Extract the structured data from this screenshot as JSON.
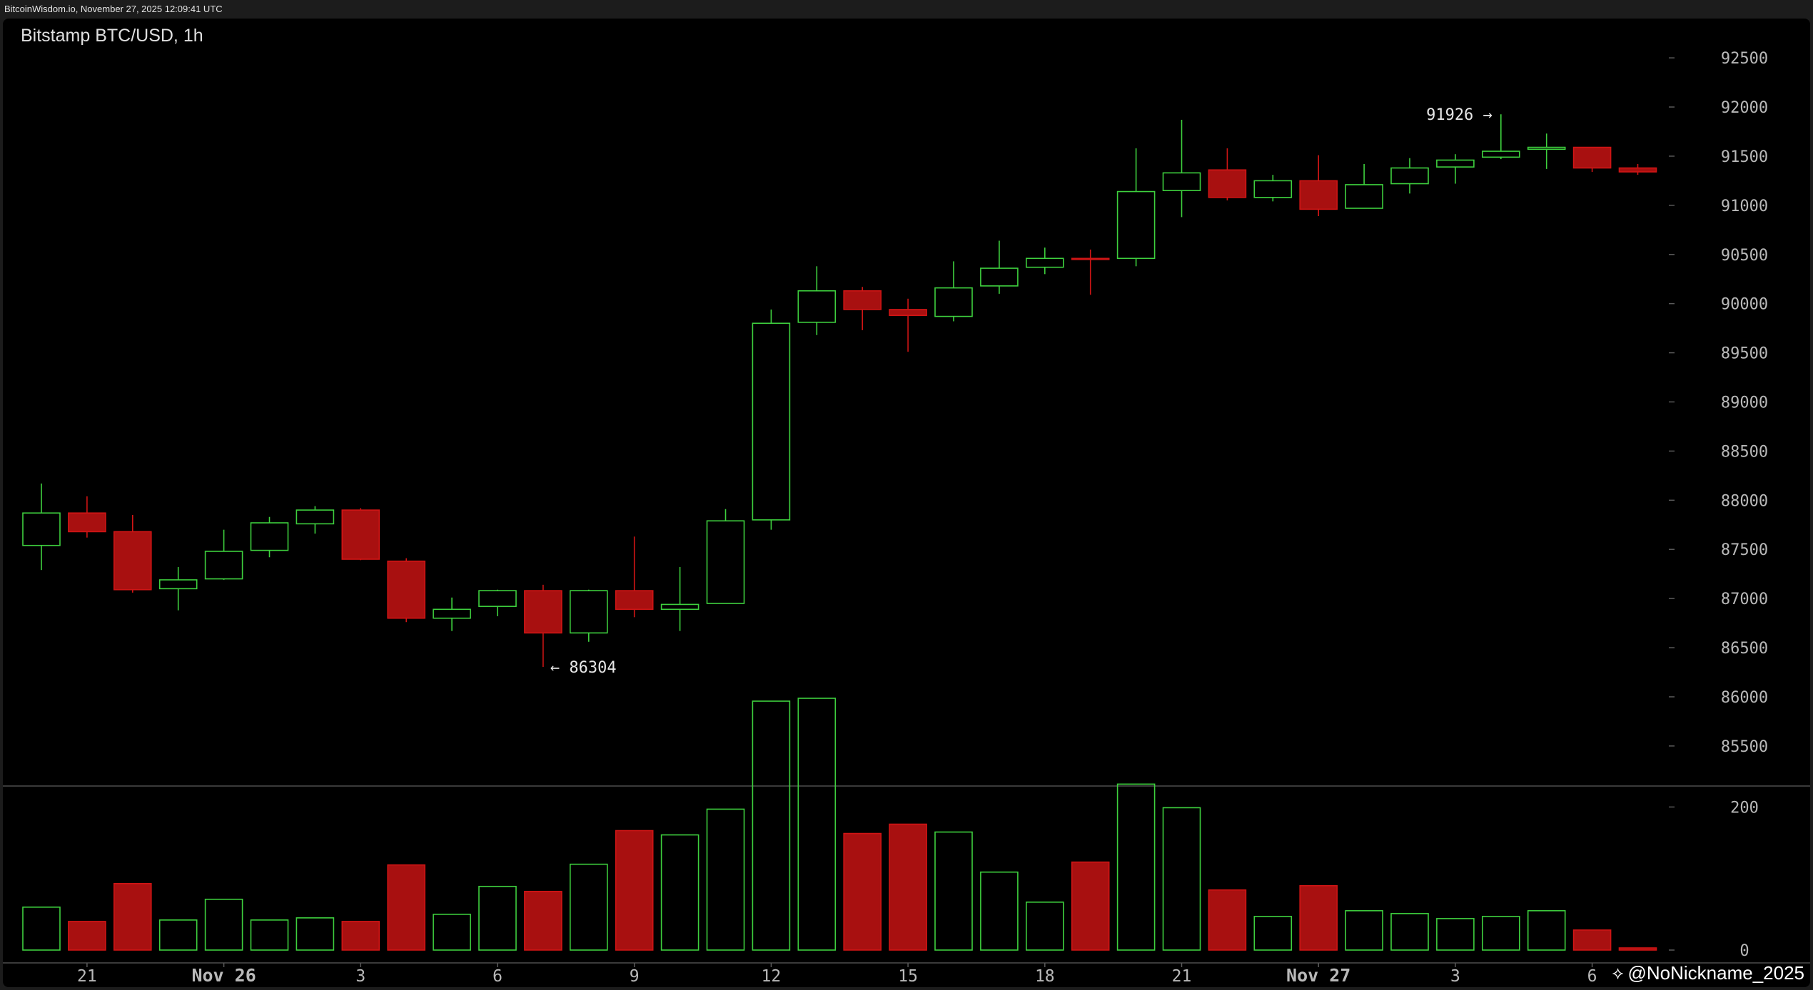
{
  "header": {
    "source_text": "BitcoinWisdom.io, November 27, 2025 12:09:41 UTC"
  },
  "watermark": {
    "text": "@NoNickname_2025",
    "icon": "binance-diamond-icon"
  },
  "colors": {
    "up": "#3ed03e",
    "down": "#a81010",
    "down_edge": "#d01515",
    "background": "#000000",
    "separator": "#3a3a3a",
    "tick_text": "#b9b9b9"
  },
  "chart_data": {
    "type": "candlestick",
    "title": "Bitstamp BTC/USD, 1h",
    "ylim": [
      85100,
      92900
    ],
    "volume_ylim": [
      0,
      355
    ],
    "y_ticks": [
      "85500",
      "86000",
      "86500",
      "87000",
      "87500",
      "88000",
      "88500",
      "89000",
      "89500",
      "90000",
      "90500",
      "91000",
      "91500",
      "92000",
      "92500"
    ],
    "volume_ticks": [
      "0",
      "200"
    ],
    "x_ticks": [
      {
        "index": 1,
        "label": "21",
        "bold": false
      },
      {
        "index": 4,
        "label": "Nov 26",
        "bold": true
      },
      {
        "index": 7,
        "label": "3",
        "bold": false
      },
      {
        "index": 10,
        "label": "6",
        "bold": false
      },
      {
        "index": 13,
        "label": "9",
        "bold": false
      },
      {
        "index": 16,
        "label": "12",
        "bold": false
      },
      {
        "index": 19,
        "label": "15",
        "bold": false
      },
      {
        "index": 22,
        "label": "18",
        "bold": false
      },
      {
        "index": 25,
        "label": "21",
        "bold": false
      },
      {
        "index": 28,
        "label": "Nov 27",
        "bold": true
      },
      {
        "index": 31,
        "label": "3",
        "bold": false
      },
      {
        "index": 34,
        "label": "6",
        "bold": false
      }
    ],
    "annotations": [
      {
        "label": "← 86304",
        "index": 11,
        "value": 86304,
        "side": "right"
      },
      {
        "label": "91926 →",
        "index": 32,
        "value": 91926,
        "side": "left"
      }
    ],
    "candles": [
      {
        "o": 87540,
        "h": 88170,
        "l": 87290,
        "c": 87870,
        "v": 60
      },
      {
        "o": 87870,
        "h": 88040,
        "l": 87620,
        "c": 87680,
        "v": 40
      },
      {
        "o": 87680,
        "h": 87850,
        "l": 87060,
        "c": 87090,
        "v": 93
      },
      {
        "o": 87100,
        "h": 87320,
        "l": 86880,
        "c": 87190,
        "v": 42
      },
      {
        "o": 87200,
        "h": 87700,
        "l": 87190,
        "c": 87480,
        "v": 71
      },
      {
        "o": 87490,
        "h": 87830,
        "l": 87420,
        "c": 87770,
        "v": 42
      },
      {
        "o": 87760,
        "h": 87940,
        "l": 87660,
        "c": 87900,
        "v": 45
      },
      {
        "o": 87900,
        "h": 87920,
        "l": 87390,
        "c": 87400,
        "v": 40
      },
      {
        "o": 87380,
        "h": 87410,
        "l": 86760,
        "c": 86800,
        "v": 119
      },
      {
        "o": 86800,
        "h": 87010,
        "l": 86670,
        "c": 86890,
        "v": 50
      },
      {
        "o": 86920,
        "h": 87090,
        "l": 86820,
        "c": 87080,
        "v": 89
      },
      {
        "o": 87080,
        "h": 87140,
        "l": 86304,
        "c": 86650,
        "v": 82
      },
      {
        "o": 86650,
        "h": 87090,
        "l": 86560,
        "c": 87080,
        "v": 120
      },
      {
        "o": 87080,
        "h": 87630,
        "l": 86810,
        "c": 86890,
        "v": 167
      },
      {
        "o": 86890,
        "h": 87320,
        "l": 86670,
        "c": 86940,
        "v": 161
      },
      {
        "o": 86950,
        "h": 87910,
        "l": 86950,
        "c": 87790,
        "v": 197
      },
      {
        "o": 87800,
        "h": 89940,
        "l": 87700,
        "c": 89800,
        "v": 348
      },
      {
        "o": 89810,
        "h": 90380,
        "l": 89680,
        "c": 90130,
        "v": 352
      },
      {
        "o": 90130,
        "h": 90170,
        "l": 89730,
        "c": 89940,
        "v": 163
      },
      {
        "o": 89940,
        "h": 90050,
        "l": 89510,
        "c": 89880,
        "v": 176
      },
      {
        "o": 89870,
        "h": 90430,
        "l": 89820,
        "c": 90160,
        "v": 165
      },
      {
        "o": 90180,
        "h": 90640,
        "l": 90100,
        "c": 90360,
        "v": 109
      },
      {
        "o": 90370,
        "h": 90570,
        "l": 90300,
        "c": 90460,
        "v": 67
      },
      {
        "o": 90460,
        "h": 90550,
        "l": 90090,
        "c": 90450,
        "v": 123
      },
      {
        "o": 90460,
        "h": 91580,
        "l": 90380,
        "c": 91140,
        "v": 232
      },
      {
        "o": 91150,
        "h": 91870,
        "l": 90880,
        "c": 91330,
        "v": 199
      },
      {
        "o": 91360,
        "h": 91580,
        "l": 91050,
        "c": 91080,
        "v": 84
      },
      {
        "o": 91080,
        "h": 91310,
        "l": 91040,
        "c": 91250,
        "v": 47
      },
      {
        "o": 91250,
        "h": 91510,
        "l": 90890,
        "c": 90960,
        "v": 90
      },
      {
        "o": 90970,
        "h": 91420,
        "l": 90970,
        "c": 91210,
        "v": 55
      },
      {
        "o": 91220,
        "h": 91480,
        "l": 91120,
        "c": 91380,
        "v": 51
      },
      {
        "o": 91390,
        "h": 91520,
        "l": 91220,
        "c": 91460,
        "v": 44
      },
      {
        "o": 91490,
        "h": 91926,
        "l": 91470,
        "c": 91550,
        "v": 47
      },
      {
        "o": 91570,
        "h": 91730,
        "l": 91370,
        "c": 91590,
        "v": 55
      },
      {
        "o": 91590,
        "h": 91590,
        "l": 91340,
        "c": 91380,
        "v": 28
      },
      {
        "o": 91380,
        "h": 91420,
        "l": 91310,
        "c": 91340,
        "v": 3
      }
    ]
  }
}
